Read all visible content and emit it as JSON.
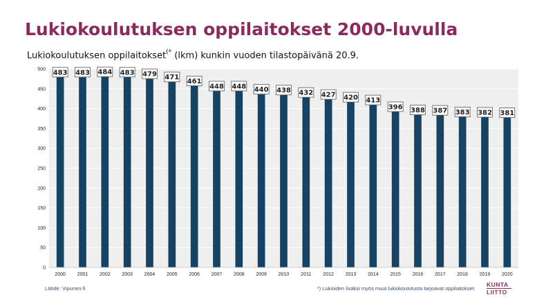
{
  "title": "Lukiokoulutuksen oppilaitokset 2000-luvulla",
  "subtitle": {
    "main": "Lukiokoulutuksen oppilaitokset",
    "marker": "(*",
    "rest": " (lkm) kunkin vuoden tilastopäivänä 20.9."
  },
  "source": "Lähde: Vipunen.fi",
  "footnote": "*) Lukioiden lisäksi myös muut lukiokoulutusta tarjoavat oppilaitokset.",
  "logo": {
    "line1": "KUNTA",
    "line2": "LIITTO"
  },
  "colors": {
    "bar": "#164263",
    "title": "#8a2a5f",
    "plot_background": "#efefef"
  },
  "chart_data": {
    "type": "bar",
    "categories": [
      "2000",
      "2001",
      "2002",
      "2003",
      "2004",
      "2005",
      "2006",
      "2007",
      "2008",
      "2009",
      "2010",
      "2011",
      "2012",
      "2013",
      "2014",
      "2015",
      "2016",
      "2017",
      "2018",
      "2019",
      "2020"
    ],
    "values": [
      483,
      483,
      484,
      483,
      479,
      471,
      461,
      448,
      448,
      440,
      438,
      432,
      427,
      420,
      413,
      396,
      388,
      387,
      383,
      382,
      381
    ],
    "ylim": [
      0,
      500
    ],
    "yticks": [
      0,
      50,
      100,
      150,
      200,
      250,
      300,
      350,
      400,
      450,
      500
    ],
    "grid": true,
    "data_labels": true,
    "legend": "none"
  }
}
